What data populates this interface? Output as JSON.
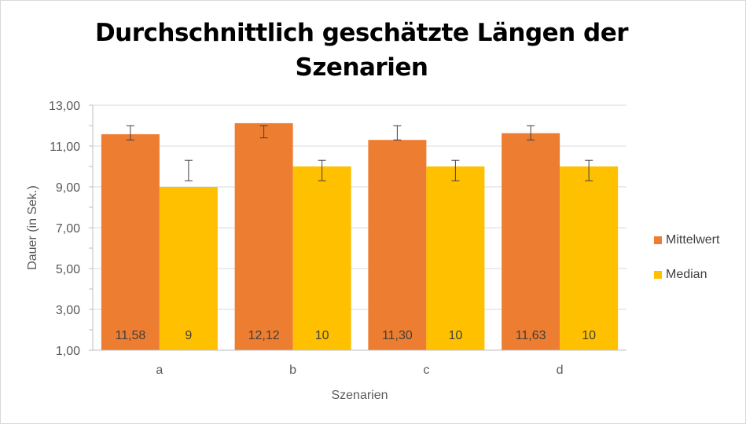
{
  "chart_data": {
    "type": "bar",
    "title_line1": "Durchschnittlich geschätzte Längen der",
    "title_line2": "Szenarien",
    "xlabel": "Szenarien",
    "ylabel": "Dauer (in Sek.)",
    "ylim": [
      1,
      13
    ],
    "yticks": [
      "1,00",
      "3,00",
      "5,00",
      "7,00",
      "9,00",
      "11,00",
      "13,00"
    ],
    "ytick_values": [
      1,
      3,
      5,
      7,
      9,
      11,
      13
    ],
    "categories": [
      "a",
      "b",
      "c",
      "d"
    ],
    "grid": true,
    "legend_position": "right",
    "series": [
      {
        "name": "Mittelwert",
        "color": "#ED7D31",
        "values": [
          11.58,
          12.12,
          11.3,
          11.63
        ],
        "labels": [
          "11,58",
          "12,12",
          "11,30",
          "11,63"
        ],
        "error_low": [
          11.3,
          11.4,
          11.3,
          11.3
        ],
        "error_high": [
          12.0,
          12.0,
          12.0,
          12.0
        ]
      },
      {
        "name": "Median",
        "color": "#FFC000",
        "values": [
          9,
          10,
          10,
          10
        ],
        "labels": [
          "9",
          "10",
          "10",
          "10"
        ],
        "error_low": [
          9.3,
          9.3,
          9.3,
          9.3
        ],
        "error_high": [
          10.3,
          10.3,
          10.3,
          10.3
        ]
      }
    ]
  }
}
